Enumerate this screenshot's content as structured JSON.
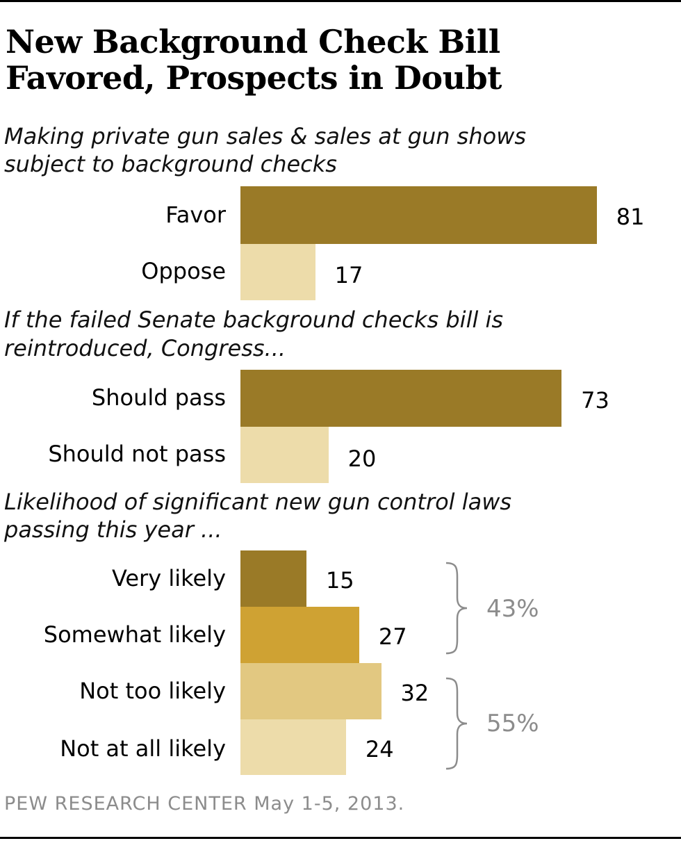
{
  "title_line1": "New Background Check Bill",
  "title_line2": "Favored, Prospects in Doubt",
  "source": "PEW RESEARCH CENTER May 1-5, 2013.",
  "colors": {
    "dark_gold": "#9A7A27",
    "light_tan": "#EDDCAA",
    "mid_gold": "#CFA233",
    "sand": "#E2C881",
    "net_gray": "#8C8C8C"
  },
  "chart_data": {
    "type": "bar",
    "orientation": "horizontal",
    "xlim": [
      0,
      100
    ],
    "groups": [
      {
        "question_line1": "Making private gun sales & sales at gun shows",
        "question_line2": "subject to background checks",
        "categories": [
          "Favor",
          "Oppose"
        ],
        "values": [
          81,
          17
        ]
      },
      {
        "question_line1": "If the failed Senate background checks bill is",
        "question_line2": "reintroduced, Congress...",
        "categories": [
          "Should pass",
          "Should not pass"
        ],
        "values": [
          73,
          20
        ]
      },
      {
        "question_line1": "Likelihood of significant new gun control laws",
        "question_line2": "passing this year ...",
        "categories": [
          "Very likely",
          "Somewhat likely",
          "Not too likely",
          "Not at all likely"
        ],
        "values": [
          15,
          27,
          32,
          24
        ],
        "nets": [
          {
            "label": "43%",
            "value": 43
          },
          {
            "label": "55%",
            "value": 55
          }
        ]
      }
    ]
  }
}
